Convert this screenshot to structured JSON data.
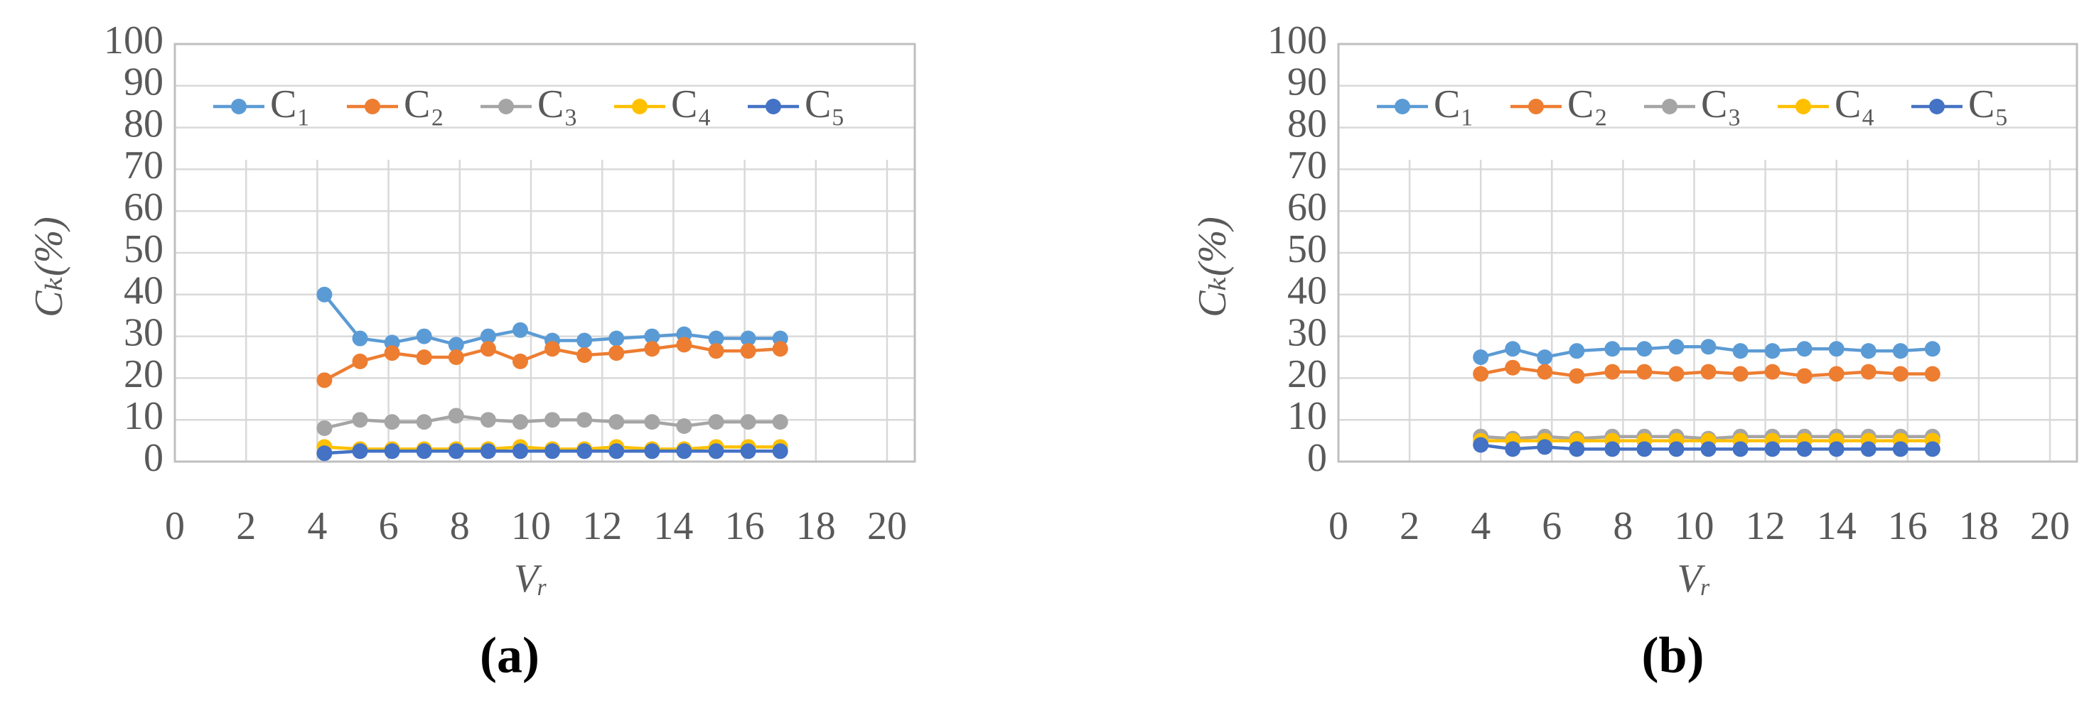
{
  "chart_data": [
    {
      "type": "line",
      "caption": "(a)",
      "xlabel": "Vᵣ",
      "ylabel": "Cₖ(%)",
      "x": [
        4.2,
        5.2,
        6.1,
        7.0,
        7.9,
        8.8,
        9.7,
        10.6,
        11.5,
        12.4,
        13.4,
        14.3,
        15.2,
        16.1,
        17.0
      ],
      "series": [
        {
          "name": "C₁",
          "color": "#5b9bd5",
          "values": [
            40,
            29.5,
            28.5,
            30,
            28,
            30,
            31.5,
            29,
            29,
            29.5,
            30,
            30.5,
            29.5,
            29.5,
            29.5
          ]
        },
        {
          "name": "C₂",
          "color": "#ed7d31",
          "values": [
            19.5,
            24,
            26,
            25,
            25,
            27,
            24,
            27,
            25.5,
            26,
            27,
            28,
            26.5,
            26.5,
            27
          ]
        },
        {
          "name": "C₃",
          "color": "#a5a5a5",
          "values": [
            8,
            10,
            9.5,
            9.5,
            11,
            10,
            9.5,
            10,
            10,
            9.5,
            9.5,
            8.5,
            9.5,
            9.5,
            9.5
          ]
        },
        {
          "name": "C₄",
          "color": "#ffc000",
          "values": [
            3.5,
            3,
            3,
            3,
            3,
            3,
            3.5,
            3,
            3,
            3.5,
            3,
            3,
            3.5,
            3.5,
            3.5
          ]
        },
        {
          "name": "C₅",
          "color": "#4472c4",
          "values": [
            2,
            2.5,
            2.5,
            2.5,
            2.5,
            2.5,
            2.5,
            2.5,
            2.5,
            2.5,
            2.5,
            2.5,
            2.5,
            2.5,
            2.5
          ]
        }
      ],
      "xlim": [
        0,
        20
      ],
      "xticks": [
        0,
        2,
        4,
        6,
        8,
        10,
        12,
        14,
        16,
        18,
        20
      ],
      "ylim": [
        0,
        100
      ],
      "yticks": [
        0,
        10,
        20,
        30,
        40,
        50,
        60,
        70,
        80,
        90,
        100
      ],
      "grid": true,
      "legend": "top"
    },
    {
      "type": "line",
      "caption": "(b)",
      "xlabel": "Vᵣ",
      "ylabel": "Cₖ(%)",
      "x": [
        4.0,
        4.9,
        5.8,
        6.7,
        7.7,
        8.6,
        9.5,
        10.4,
        11.3,
        12.2,
        13.1,
        14.0,
        14.9,
        15.8,
        16.7
      ],
      "series": [
        {
          "name": "C₁",
          "color": "#5b9bd5",
          "values": [
            25,
            27,
            25,
            26.5,
            27,
            27,
            27.5,
            27.5,
            26.5,
            26.5,
            27,
            27,
            26.5,
            26.5,
            27
          ]
        },
        {
          "name": "C₂",
          "color": "#ed7d31",
          "values": [
            21,
            22.5,
            21.5,
            20.5,
            21.5,
            21.5,
            21,
            21.5,
            21,
            21.5,
            20.5,
            21,
            21.5,
            21,
            21
          ]
        },
        {
          "name": "C₃",
          "color": "#a5a5a5",
          "values": [
            6,
            5.5,
            6,
            5.5,
            6,
            6,
            6,
            5.5,
            6,
            6,
            6,
            6,
            6,
            6,
            6
          ]
        },
        {
          "name": "C₄",
          "color": "#ffc000",
          "values": [
            5,
            5,
            5,
            5,
            5,
            5,
            5,
            5,
            5,
            5,
            5,
            5,
            5,
            5,
            5
          ]
        },
        {
          "name": "C₅",
          "color": "#4472c4",
          "values": [
            4,
            3,
            3.5,
            3,
            3,
            3,
            3,
            3,
            3,
            3,
            3,
            3,
            3,
            3,
            3
          ]
        }
      ],
      "xlim": [
        0,
        20
      ],
      "xticks": [
        0,
        2,
        4,
        6,
        8,
        10,
        12,
        14,
        16,
        18,
        20
      ],
      "ylim": [
        0,
        100
      ],
      "yticks": [
        0,
        10,
        20,
        30,
        40,
        50,
        60,
        70,
        80,
        90,
        100
      ],
      "grid": true,
      "legend": "top"
    }
  ]
}
